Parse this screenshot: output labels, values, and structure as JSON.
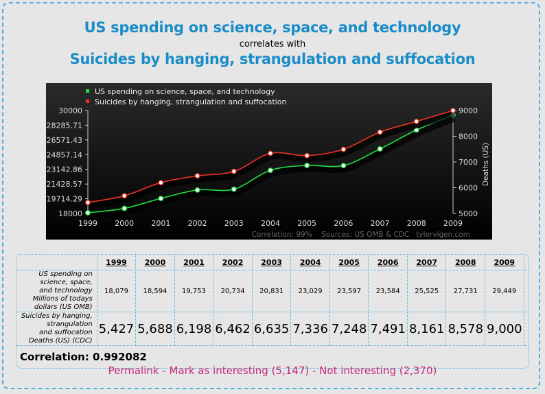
{
  "header": {
    "title_1": "US spending on science, space, and technology",
    "connector": "correlates with",
    "title_2": "Suicides by hanging, strangulation and suffocation"
  },
  "chart_data": {
    "type": "line",
    "x": [
      1999,
      2000,
      2001,
      2002,
      2003,
      2004,
      2005,
      2006,
      2007,
      2008,
      2009
    ],
    "series": [
      {
        "name": "US spending on science, space, and technology",
        "axis": "left",
        "color": "#22dd44",
        "values": [
          18079,
          18594,
          19753,
          20734,
          20831,
          23029,
          23597,
          23584,
          25525,
          27731,
          29449
        ]
      },
      {
        "name": "Suicides by hanging, strangulation and suffocation",
        "axis": "right",
        "color": "#ee3322",
        "values": [
          5427,
          5688,
          6198,
          6462,
          6635,
          7336,
          7248,
          7491,
          8161,
          8578,
          9000
        ]
      }
    ],
    "left_axis": {
      "range": [
        18000,
        30000
      ],
      "ticks": [
        "18000",
        "19714.29",
        "21428.57",
        "23142.86",
        "24857.14",
        "26571.43",
        "28285.71",
        "30000"
      ]
    },
    "right_axis": {
      "range": [
        5000,
        9000
      ],
      "ticks": [
        "5000",
        "6000",
        "7000",
        "8000",
        "9000"
      ],
      "label": "Deaths (US)"
    },
    "x_ticks": [
      "1999",
      "2000",
      "2001",
      "2002",
      "2003",
      "2004",
      "2005",
      "2006",
      "2007",
      "2008",
      "2009"
    ],
    "legend_placement": "top-left",
    "background": "#000000",
    "footer": "Correlation: 99%    Sources: US OMB & CDC   tylervigen.com"
  },
  "table": {
    "years": [
      "1999",
      "2000",
      "2001",
      "2002",
      "2003",
      "2004",
      "2005",
      "2006",
      "2007",
      "2008",
      "2009"
    ],
    "row1": {
      "label_line1": "US spending on science, space,",
      "label_line2": "and technology",
      "label_unit": "Millions of todays dollars (US OMB)",
      "values": [
        "18,079",
        "18,594",
        "19,753",
        "20,734",
        "20,831",
        "23,029",
        "23,597",
        "23,584",
        "25,525",
        "27,731",
        "29,449"
      ]
    },
    "row2": {
      "label_line1": "Suicides by hanging, strangulation",
      "label_line2": "and suffocation",
      "label_unit": "Deaths (US) (CDC)",
      "values": [
        "5,427",
        "5,688",
        "6,198",
        "6,462",
        "6,635",
        "7,336",
        "7,248",
        "7,491",
        "8,161",
        "8,578",
        "9,000"
      ]
    },
    "correlation": "Correlation: 0.992082"
  },
  "links": {
    "permalink": "Permalink",
    "sep": " - ",
    "interesting": "Mark as interesting (5,147)",
    "not_interesting": "Not interesting (2,370)"
  }
}
